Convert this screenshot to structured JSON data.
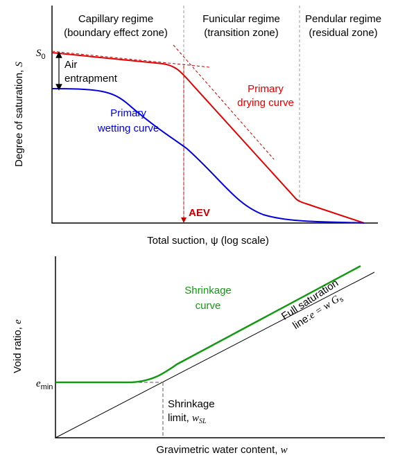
{
  "top_panel": {
    "regimes": [
      {
        "name": "Capillary regime",
        "zone": "(boundary effect zone)"
      },
      {
        "name": "Funicular regime",
        "zone": "(transition zone)"
      },
      {
        "name": "Pendular regime",
        "zone": "(residual zone)"
      }
    ],
    "s0": {
      "symbol": "S",
      "subscript": "0"
    },
    "air_entrapment": [
      "Air",
      "entrapment"
    ],
    "drying_curve": [
      "Primary",
      "drying curve"
    ],
    "wetting_curve": [
      "Primary",
      "wetting curve"
    ],
    "aev": "AEV",
    "y_label": {
      "text": "Degree of saturation, ",
      "symbol": "S"
    },
    "x_label": "Total suction, ψ (log scale)"
  },
  "bottom_panel": {
    "e_min": {
      "symbol": "e",
      "subscript": "min"
    },
    "shrinkage_curve": [
      "Shrinkage",
      "curve"
    ],
    "saturation_line": {
      "line1": "Full saturation",
      "line2": "line:",
      "formula": "e = w G",
      "subscript": "s"
    },
    "shrinkage_limit": {
      "line1": "Shrinkage",
      "line2": "limit, ",
      "symbol": "w",
      "subscript": "SL"
    },
    "y_label": {
      "text": "Void ratio, ",
      "symbol": "e"
    },
    "x_label": {
      "text": "Gravimetric water content, ",
      "symbol": "w"
    }
  }
}
